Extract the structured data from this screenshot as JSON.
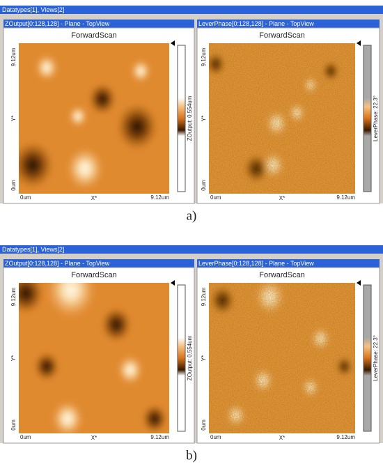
{
  "figures": [
    {
      "label": "a)",
      "window_title": "Datatypes[1], Views[2]",
      "views": [
        {
          "header": "ZOutput[0:128,128] - Plane - TopView",
          "scan": "ForwardScan",
          "y_max": "9.12um",
          "y_axis": "Y*",
          "y_min": "0um",
          "x_min": "0um",
          "x_axis": "X*",
          "x_max": "9.12um",
          "colorbar": "ZOutput: 0.554um"
        },
        {
          "header": "LeverPhase[0:128,128] - Plane - TopView",
          "scan": "ForwardScan",
          "y_max": "9.12um",
          "y_axis": "Y*",
          "y_min": "0um",
          "x_min": "0um",
          "x_axis": "X*",
          "x_max": "9.12um",
          "colorbar": "LeverPhase: 22.3°"
        }
      ]
    },
    {
      "label": "b)",
      "window_title": "Datatypes[1], Views[2]",
      "views": [
        {
          "header": "ZOutput[0:128,128] - Plane - TopView",
          "scan": "ForwardScan",
          "y_max": "9.12um",
          "y_axis": "Y*",
          "y_min": "0um",
          "x_min": "0um",
          "x_axis": "X*",
          "x_max": "9.12um",
          "colorbar": "ZOutput: 0.554um"
        },
        {
          "header": "LeverPhase[0:128,128] - Plane - TopView",
          "scan": "ForwardScan",
          "y_max": "9.12um",
          "y_axis": "Y*",
          "y_min": "0um",
          "x_min": "0um",
          "x_axis": "X*",
          "x_max": "9.12um",
          "colorbar": "LeverPhase: 22.3°"
        }
      ]
    }
  ]
}
